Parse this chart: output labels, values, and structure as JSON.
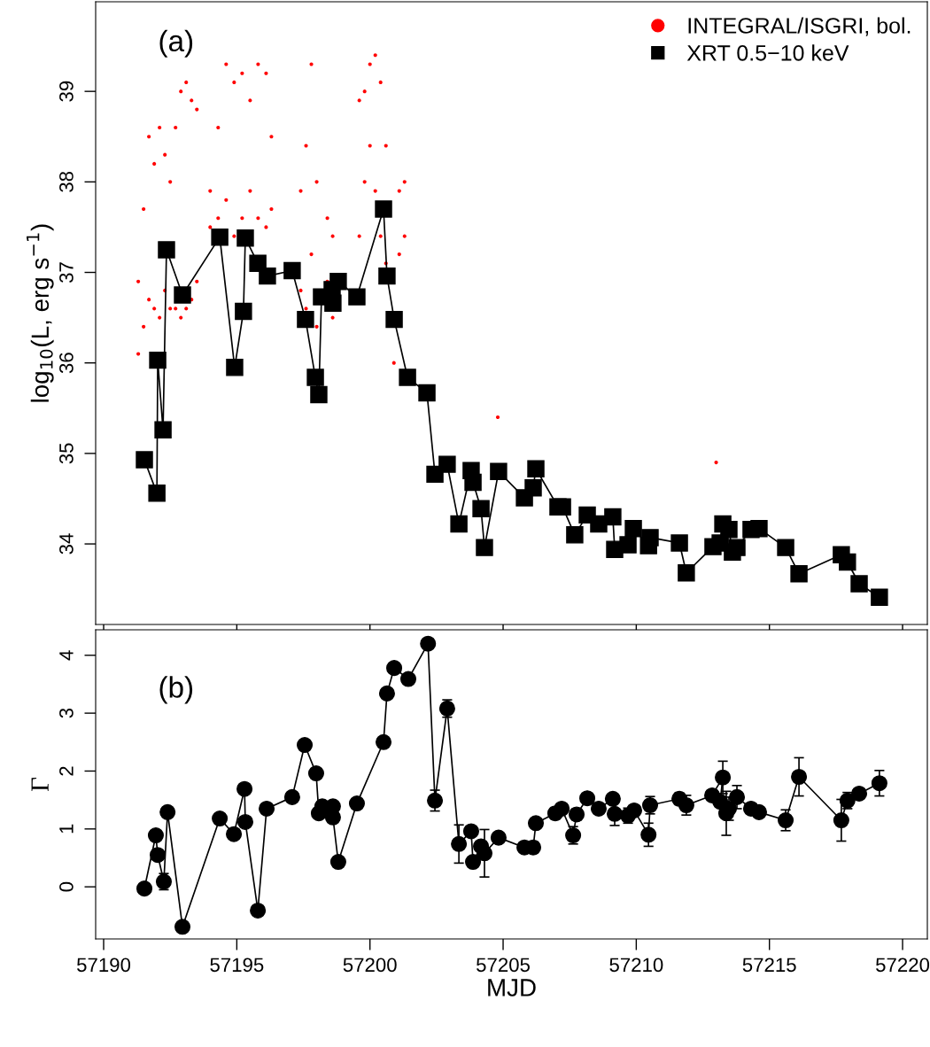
{
  "chart_data": [
    {
      "type": "line",
      "ylabel": "log$_{10}$(L, erg s$^{−1}$)",
      "annotations": [
        "(a)"
      ],
      "xlim": [
        57189.7,
        57220.93
      ],
      "xticks": [
        57190,
        57195,
        57200,
        57205,
        57210,
        57215,
        57220
      ],
      "ylim": [
        33.11,
        39.99
      ],
      "yticks": [
        34,
        35,
        36,
        37,
        38,
        39
      ],
      "tick_labels": "y",
      "grid": false,
      "legend": "top right",
      "series": [
        {
          "name": "INTEGRAL/ISGRI, bol.",
          "type": "scatter",
          "marker": "circle",
          "color": "#ff0000",
          "x": [
            57191.3,
            57191.3,
            57191.5,
            57191.5,
            57191.7,
            57191.7,
            57191.9,
            57191.9,
            57192.1,
            57192.1,
            57192.3,
            57192.3,
            57192.5,
            57192.5,
            57192.7,
            57192.7,
            57192.9,
            57192.9,
            57193.1,
            57193.1,
            57193.3,
            57193.3,
            57193.5,
            57193.5,
            57194.0,
            57194.0,
            57194.3,
            57194.3,
            57194.6,
            57194.6,
            57194.9,
            57194.9,
            57195.2,
            57195.2,
            57195.5,
            57195.5,
            57195.8,
            57195.8,
            57196.1,
            57196.1,
            57196.3,
            57196.3,
            57197.4,
            57197.4,
            57197.6,
            57197.6,
            57197.8,
            57197.8,
            57198.0,
            57198.0,
            57198.4,
            57198.4,
            57198.6,
            57198.6,
            57199.6,
            57199.6,
            57199.8,
            57199.8,
            57200.0,
            57200.0,
            57200.2,
            57200.2,
            57200.4,
            57200.4,
            57200.6,
            57200.6,
            57201.1,
            57201.1,
            57201.3,
            57201.3,
            57200.9,
            57204.8,
            57213.0
          ],
          "values": [
            36.1,
            36.9,
            36.4,
            37.7,
            36.7,
            38.5,
            36.6,
            38.2,
            36.5,
            38.6,
            36.8,
            38.3,
            36.6,
            38.0,
            36.6,
            38.6,
            36.5,
            39.0,
            36.6,
            39.1,
            36.7,
            38.9,
            36.9,
            38.8,
            37.5,
            37.9,
            37.6,
            38.6,
            37.8,
            39.3,
            37.4,
            39.1,
            37.6,
            39.2,
            37.9,
            38.9,
            37.6,
            39.3,
            37.5,
            39.2,
            37.7,
            38.5,
            36.8,
            37.9,
            36.6,
            38.4,
            37.2,
            39.3,
            36.4,
            38.0,
            36.9,
            37.6,
            36.5,
            37.4,
            37.4,
            38.9,
            38.0,
            39.0,
            38.4,
            39.3,
            37.9,
            39.4,
            37.4,
            39.1,
            37.1,
            38.4,
            37.2,
            37.9,
            37.4,
            38.0,
            36.0,
            35.4,
            34.9
          ]
        },
        {
          "name": "XRT 0.5−10 keV",
          "marker": "square",
          "line_style": "solid",
          "color": "#000000",
          "x": [
            57191.53,
            57192.0,
            57192.03,
            57192.23,
            57192.36,
            57192.96,
            57194.36,
            57194.92,
            57195.25,
            57195.32,
            57195.79,
            57196.15,
            57197.08,
            57197.58,
            57197.95,
            57198.08,
            57198.18,
            57198.58,
            57198.61,
            57198.81,
            57199.51,
            57200.51,
            57200.64,
            57200.91,
            57201.41,
            57202.14,
            57202.44,
            57202.9,
            57203.34,
            57203.8,
            57203.87,
            57204.17,
            57204.3,
            57204.83,
            57205.8,
            57206.13,
            57206.23,
            57207.06,
            57207.23,
            57207.69,
            57208.16,
            57208.59,
            57209.12,
            57209.19,
            57209.69,
            57209.89,
            57210.46,
            57210.52,
            57211.62,
            57211.88,
            57212.88,
            57213.15,
            57213.25,
            57213.48,
            57213.61,
            57213.78,
            57214.31,
            57214.61,
            57215.61,
            57216.11,
            57217.7,
            57217.93,
            57218.37,
            57219.13
          ],
          "values": [
            34.93,
            34.56,
            36.03,
            35.26,
            37.25,
            36.75,
            37.39,
            35.95,
            36.57,
            37.38,
            37.1,
            36.96,
            37.02,
            36.48,
            35.84,
            35.65,
            36.73,
            36.81,
            36.66,
            36.9,
            36.73,
            37.7,
            36.96,
            36.48,
            35.84,
            35.67,
            34.77,
            34.88,
            34.22,
            34.81,
            34.68,
            34.39,
            33.96,
            34.8,
            34.51,
            34.62,
            34.83,
            34.41,
            34.41,
            34.1,
            34.32,
            34.22,
            34.3,
            33.94,
            33.99,
            34.17,
            33.98,
            34.07,
            34.01,
            33.68,
            33.97,
            34.01,
            34.22,
            34.16,
            33.91,
            33.96,
            34.16,
            34.17,
            33.96,
            33.67,
            33.88,
            33.8,
            33.56,
            33.41
          ]
        }
      ]
    },
    {
      "type": "line",
      "xlabel": "MJD",
      "ylabel": "Γ",
      "annotations": [
        "(b)"
      ],
      "xlim": [
        57189.7,
        57220.93
      ],
      "xticks": [
        57190,
        57195,
        57200,
        57205,
        57210,
        57215,
        57220
      ],
      "ylim": [
        -0.9,
        4.44
      ],
      "yticks": [
        0,
        1,
        2,
        3,
        4
      ],
      "grid": false,
      "series": [
        {
          "marker": "circle",
          "line_style": "solid",
          "color": "#000000",
          "x": [
            57191.53,
            57191.96,
            57192.03,
            57192.26,
            57192.4,
            57192.96,
            57194.36,
            57194.89,
            57195.29,
            57195.32,
            57195.79,
            57196.12,
            57197.08,
            57197.55,
            57197.98,
            57198.08,
            57198.21,
            57198.61,
            57198.61,
            57198.81,
            57199.51,
            57200.51,
            57200.64,
            57200.91,
            57201.44,
            57202.18,
            57202.44,
            57202.9,
            57203.34,
            57203.8,
            57203.87,
            57204.17,
            57204.3,
            57204.83,
            57205.8,
            57206.13,
            57206.23,
            57206.96,
            57207.2,
            57207.63,
            57207.76,
            57208.16,
            57208.59,
            57209.12,
            57209.19,
            57209.69,
            57209.92,
            57210.46,
            57210.52,
            57211.62,
            57211.88,
            57212.85,
            57213.25,
            57213.15,
            57213.48,
            57213.38,
            57213.78,
            57214.31,
            57214.61,
            57215.61,
            57216.11,
            57217.7,
            57217.93,
            57218.37,
            57219.13
          ],
          "values": [
            -0.03,
            0.89,
            0.55,
            0.09,
            1.29,
            -0.69,
            1.18,
            0.91,
            1.69,
            1.12,
            -0.41,
            1.35,
            1.55,
            2.45,
            1.96,
            1.27,
            1.39,
            1.39,
            1.2,
            0.43,
            1.44,
            2.5,
            3.34,
            3.78,
            3.59,
            4.2,
            1.49,
            3.08,
            0.74,
            0.96,
            0.43,
            0.7,
            0.58,
            0.85,
            0.68,
            0.68,
            1.1,
            1.27,
            1.35,
            0.89,
            1.25,
            1.53,
            1.35,
            1.52,
            1.26,
            1.23,
            1.32,
            0.9,
            1.41,
            1.52,
            1.41,
            1.58,
            1.89,
            1.47,
            1.35,
            1.27,
            1.55,
            1.35,
            1.29,
            1.15,
            1.9,
            1.15,
            1.49,
            1.61,
            1.79
          ],
          "errors": [
            null,
            null,
            null,
            0.14,
            null,
            null,
            null,
            null,
            null,
            null,
            null,
            null,
            null,
            null,
            null,
            null,
            null,
            null,
            null,
            null,
            null,
            null,
            null,
            null,
            null,
            null,
            0.18,
            0.15,
            0.33,
            null,
            null,
            null,
            0.41,
            null,
            null,
            0.1,
            null,
            0.1,
            null,
            0.15,
            0.1,
            null,
            null,
            null,
            0.2,
            0.13,
            null,
            0.2,
            0.15,
            0.1,
            0.17,
            null,
            0.28,
            null,
            0.2,
            0.38,
            0.2,
            null,
            null,
            0.18,
            0.33,
            0.36,
            0.14,
            null,
            0.22
          ]
        }
      ]
    }
  ]
}
